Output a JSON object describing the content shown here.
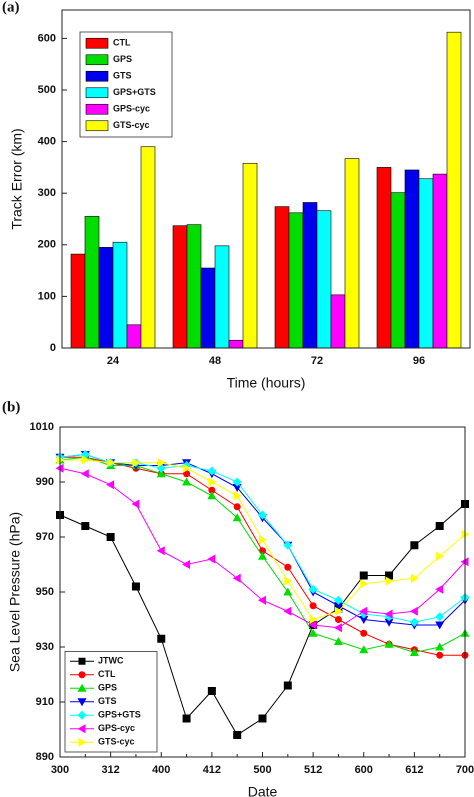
{
  "chart_data": [
    {
      "type": "bar",
      "label": "(a)",
      "x_label": "Time (hours)",
      "y_label": "Track Error (km)",
      "categories": [
        "24",
        "48",
        "72",
        "96"
      ],
      "series": [
        {
          "name": "CTL",
          "color": "#ff0000",
          "values": [
            182,
            237,
            274,
            350
          ]
        },
        {
          "name": "GPS",
          "color": "#00dd00",
          "values": [
            255,
            239,
            262,
            301
          ]
        },
        {
          "name": "GTS",
          "color": "#0000ee",
          "values": [
            195,
            155,
            282,
            345
          ]
        },
        {
          "name": "GPS+GTS",
          "color": "#00ffff",
          "values": [
            205,
            198,
            266,
            328
          ]
        },
        {
          "name": "GPS-cyc",
          "color": "#ff00ff",
          "values": [
            45,
            15,
            103,
            337
          ]
        },
        {
          "name": "GTS-cyc",
          "color": "#ffff00",
          "values": [
            390,
            358,
            367,
            612
          ]
        }
      ],
      "ylim": [
        0,
        655
      ],
      "yticks": [
        0,
        100,
        200,
        300,
        400,
        500,
        600
      ],
      "legend": "top-left"
    },
    {
      "type": "line",
      "label": "(b)",
      "x_label": "Date",
      "y_label": "Sea Level Pressure (hPa)",
      "categories": [
        "300",
        null,
        "312",
        null,
        "400",
        null,
        "412",
        null,
        "500",
        null,
        "512",
        null,
        "600",
        null,
        "612",
        null,
        "700"
      ],
      "series": [
        {
          "name": "JTWC",
          "color": "#000000",
          "marker": "square",
          "values": [
            978,
            974,
            970,
            952,
            933,
            904,
            914,
            898,
            904,
            916,
            938,
            944,
            956,
            956,
            967,
            974,
            982
          ]
        },
        {
          "name": "CTL",
          "color": "#ff0000",
          "marker": "circle",
          "values": [
            999,
            999,
            997,
            995,
            993,
            993,
            987,
            981,
            965,
            959,
            945,
            940,
            935,
            931,
            929,
            927,
            927
          ]
        },
        {
          "name": "GPS",
          "color": "#00dd00",
          "marker": "triangle-up",
          "values": [
            998,
            999,
            996,
            996,
            993,
            990,
            985,
            977,
            963,
            950,
            935,
            932,
            929,
            931,
            928,
            930,
            935
          ]
        },
        {
          "name": "GTS",
          "color": "#0000ee",
          "marker": "triangle-down",
          "values": [
            999,
            1000,
            997,
            996,
            996,
            997,
            993,
            988,
            977,
            967,
            950,
            945,
            940,
            939,
            938,
            938,
            947
          ]
        },
        {
          "name": "GPS+GTS",
          "color": "#00ffff",
          "marker": "diamond",
          "values": [
            999,
            1000,
            997,
            997,
            995,
            996,
            994,
            990,
            978,
            967,
            951,
            947,
            942,
            941,
            939,
            941,
            948
          ]
        },
        {
          "name": "GPS-cyc",
          "color": "#ff00ff",
          "marker": "triangle-left",
          "values": [
            995,
            993,
            989,
            982,
            965,
            960,
            962,
            955,
            947,
            943,
            938,
            937,
            943,
            942,
            943,
            951,
            961
          ]
        },
        {
          "name": "GTS-cyc",
          "color": "#ffff00",
          "marker": "triangle-right",
          "values": [
            998,
            998,
            997,
            997,
            997,
            995,
            990,
            985,
            969,
            954,
            940,
            943,
            953,
            954,
            955,
            963,
            971
          ]
        }
      ],
      "ylim": [
        890,
        1010
      ],
      "yticks": [
        890,
        910,
        930,
        950,
        970,
        990,
        1010
      ],
      "legend": "bottom-left"
    }
  ]
}
